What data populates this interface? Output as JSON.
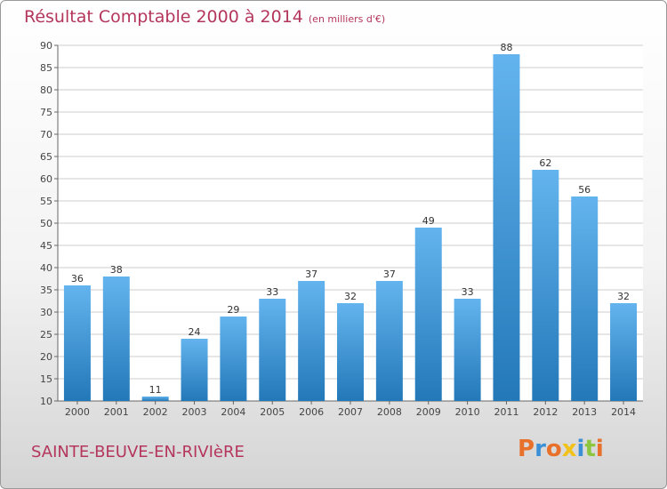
{
  "header": {
    "title": "Résultat Comptable 2000 à 2014",
    "unit": "(en milliers d'€)"
  },
  "footer": {
    "commune": "SAINTE-BEUVE-EN-RIVIèRE",
    "logo_text": "Proxiti",
    "logo_colors": [
      "#e8702a",
      "#3a8fd6",
      "#e8702a",
      "#f2c21a",
      "#3a8fd6",
      "#8cc63f",
      "#e8702a"
    ]
  },
  "colors": {
    "bar_light": "#63b4ee",
    "bar_dark": "#2378b8",
    "grid": "#cccccc",
    "title": "#b4365c"
  },
  "chart_data": {
    "type": "bar",
    "categories": [
      "2000",
      "2001",
      "2002",
      "2003",
      "2004",
      "2005",
      "2006",
      "2007",
      "2008",
      "2009",
      "2010",
      "2011",
      "2012",
      "2013",
      "2014"
    ],
    "values": [
      36,
      38,
      11,
      24,
      29,
      33,
      37,
      32,
      37,
      49,
      33,
      88,
      62,
      56,
      32
    ],
    "ylim": [
      10,
      90
    ],
    "yticks": [
      10,
      15,
      20,
      25,
      30,
      35,
      40,
      45,
      50,
      55,
      60,
      65,
      70,
      75,
      80,
      85,
      90
    ],
    "grid": true,
    "title": "Résultat Comptable 2000 à 2014",
    "xlabel": "",
    "ylabel": ""
  }
}
